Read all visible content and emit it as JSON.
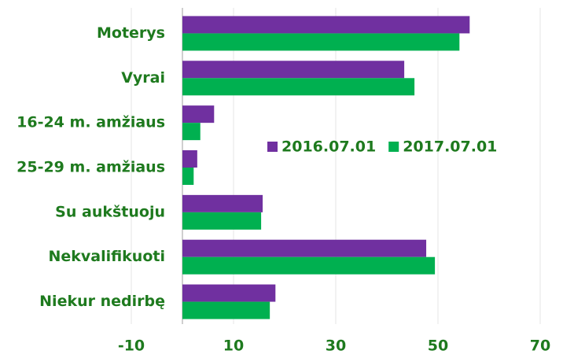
{
  "chart_data": {
    "type": "hbar",
    "categories": [
      "Moterys",
      "Vyrai",
      "16-24 m. amžiaus",
      "25-29 m. amžiaus",
      "Su aukštuoju",
      "Nekvalifikuoti",
      "Niekur nedirbę"
    ],
    "series": [
      {
        "name": "2016.07.01",
        "color": "#7030a0",
        "values": [
          56.2,
          43.4,
          6.2,
          2.9,
          15.7,
          47.7,
          18.2
        ]
      },
      {
        "name": "2017.07.01",
        "color": "#00b050",
        "values": [
          54.2,
          45.4,
          3.5,
          2.2,
          15.4,
          49.4,
          17.1
        ]
      }
    ],
    "xlim": [
      -10,
      70
    ],
    "xticks": [
      -10,
      10,
      30,
      50,
      70
    ],
    "grid": true,
    "legend": "center"
  }
}
